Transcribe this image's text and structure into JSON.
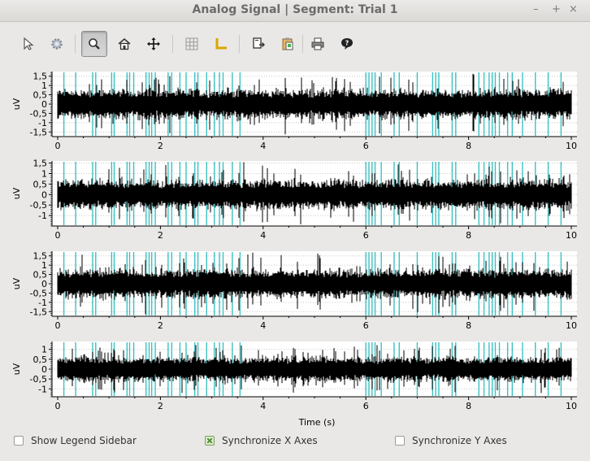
{
  "window": {
    "title": "Analog Signal | Segment: Trial 1",
    "controls": [
      "–",
      "+",
      "×"
    ]
  },
  "toolbar": {
    "items": [
      {
        "icon": "pointer-icon",
        "label": "Select"
      },
      {
        "icon": "gear-icon",
        "label": "Configure"
      },
      {
        "icon": "magnifier-icon",
        "label": "Zoom",
        "active": true
      },
      {
        "icon": "home-icon",
        "label": "Home"
      },
      {
        "icon": "move-icon",
        "label": "Pan"
      },
      {
        "icon": "grid-icon",
        "label": "Grid"
      },
      {
        "icon": "axes-icon",
        "label": "Axes"
      },
      {
        "icon": "export-icon",
        "label": "Export"
      },
      {
        "icon": "clipboard-icon",
        "label": "Copy"
      },
      {
        "icon": "printer-icon",
        "label": "Print"
      },
      {
        "icon": "help-icon",
        "label": "Help"
      }
    ]
  },
  "chart_data": [
    {
      "type": "line",
      "ylabel": "uV",
      "xlabel": "",
      "xlim": [
        0,
        10
      ],
      "ylim": [
        -1.75,
        1.75
      ],
      "xticks": [
        "0",
        "2",
        "4",
        "6",
        "8",
        "10"
      ],
      "yticks": [
        "1,5",
        "1",
        "0,5",
        "0",
        "-0,5",
        "-1",
        "-1,5"
      ],
      "grid": true,
      "series_color": "#000000",
      "spike_color": "#3ec1c1"
    },
    {
      "type": "line",
      "ylabel": "uV",
      "xlabel": "",
      "xlim": [
        0,
        10
      ],
      "ylim": [
        -1.5,
        1.6
      ],
      "xticks": [
        "0",
        "2",
        "4",
        "6",
        "8",
        "10"
      ],
      "yticks": [
        "1,5",
        "1",
        "0,5",
        "0",
        "-0,5",
        "-1"
      ],
      "grid": true,
      "series_color": "#000000",
      "spike_color": "#3ec1c1"
    },
    {
      "type": "line",
      "ylabel": "uV",
      "xlabel": "",
      "xlim": [
        0,
        10
      ],
      "ylim": [
        -1.75,
        1.75
      ],
      "xticks": [
        "0",
        "2",
        "4",
        "6",
        "8",
        "10"
      ],
      "yticks": [
        "1,5",
        "1",
        "0,5",
        "0",
        "-0,5",
        "-1",
        "-1,5"
      ],
      "grid": true,
      "series_color": "#000000",
      "spike_color": "#3ec1c1"
    },
    {
      "type": "line",
      "ylabel": "uV",
      "xlabel": "Time (s)",
      "xlim": [
        0,
        10
      ],
      "ylim": [
        -1.4,
        1.4
      ],
      "xticks": [
        "0",
        "2",
        "4",
        "6",
        "8",
        "10"
      ],
      "yticks": [
        "1",
        "0,5",
        "0",
        "-0,5",
        "-1"
      ],
      "grid": true,
      "series_color": "#000000",
      "spike_color": "#3ec1c1"
    }
  ],
  "bottom": {
    "show_legend": {
      "label": "Show Legend Sidebar",
      "checked": false
    },
    "sync_x": {
      "label": "Synchronize X Axes",
      "checked": true
    },
    "sync_y": {
      "label": "Synchronize Y Axes",
      "checked": false
    }
  }
}
